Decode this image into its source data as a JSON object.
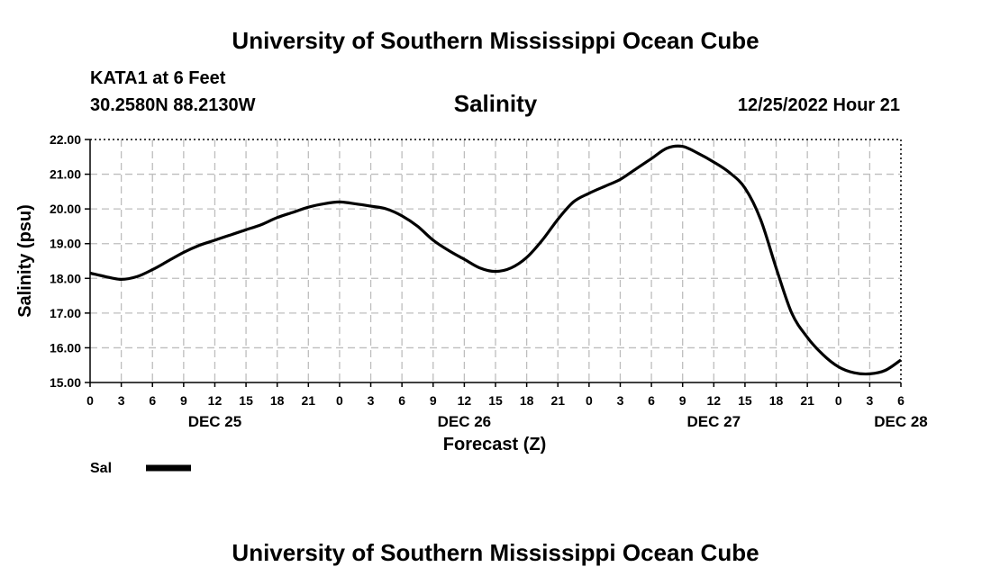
{
  "header": {
    "title": "University of Southern Mississippi Ocean Cube",
    "station": "KATA1 at 6 Feet",
    "coords": "30.2580N  88.2130W",
    "parameter": "Salinity",
    "timestamp": "12/25/2022 Hour 21"
  },
  "footer": {
    "title": "University of Southern Mississippi Ocean Cube"
  },
  "chart_data": {
    "type": "line",
    "title": "Salinity",
    "xlabel": "Forecast (Z)",
    "ylabel": "Salinity (psu)",
    "ylim": [
      15.0,
      22.0
    ],
    "yticks": [
      "15.00",
      "16.00",
      "17.00",
      "18.00",
      "19.00",
      "20.00",
      "21.00",
      "22.00"
    ],
    "xticks": [
      "0",
      "3",
      "6",
      "9",
      "12",
      "15",
      "18",
      "21",
      "0",
      "3",
      "6",
      "9",
      "12",
      "15",
      "18",
      "21",
      "0",
      "3",
      "6",
      "9",
      "12",
      "15",
      "18",
      "21",
      "0",
      "3",
      "6"
    ],
    "day_labels": [
      {
        "label": "DEC 25",
        "hour": 12
      },
      {
        "label": "DEC 26",
        "hour": 36
      },
      {
        "label": "DEC 27",
        "hour": 60
      },
      {
        "label": "DEC 28",
        "hour": 78
      }
    ],
    "x_hours_range": [
      0,
      78
    ],
    "grid": true,
    "legend_position": "bottom-left",
    "series": [
      {
        "name": "Sal",
        "color": "#000000",
        "x_hours": [
          0,
          1.5,
          3,
          4.5,
          6,
          7.5,
          9,
          10.5,
          12,
          13.5,
          15,
          16.5,
          18,
          19.5,
          21,
          22.5,
          24,
          25.5,
          27,
          28.5,
          30,
          31.5,
          33,
          34.5,
          36,
          37.5,
          39,
          40.5,
          42,
          43.5,
          45,
          46.5,
          48,
          49.5,
          51,
          52.5,
          54,
          55.5,
          57,
          58.5,
          60,
          61.5,
          63,
          64.5,
          66,
          67.5,
          69,
          70.5,
          72,
          73.5,
          75,
          76.5,
          78
        ],
        "values": [
          18.15,
          18.05,
          17.97,
          18.05,
          18.25,
          18.5,
          18.75,
          18.95,
          19.1,
          19.25,
          19.4,
          19.55,
          19.75,
          19.9,
          20.05,
          20.15,
          20.2,
          20.15,
          20.08,
          20.0,
          19.8,
          19.5,
          19.1,
          18.8,
          18.55,
          18.3,
          18.2,
          18.3,
          18.6,
          19.1,
          19.7,
          20.2,
          20.45,
          20.65,
          20.85,
          21.15,
          21.45,
          21.75,
          21.8,
          21.6,
          21.35,
          21.05,
          20.6,
          19.7,
          18.3,
          17.0,
          16.3,
          15.8,
          15.45,
          15.28,
          15.25,
          15.35,
          15.65
        ]
      }
    ]
  }
}
